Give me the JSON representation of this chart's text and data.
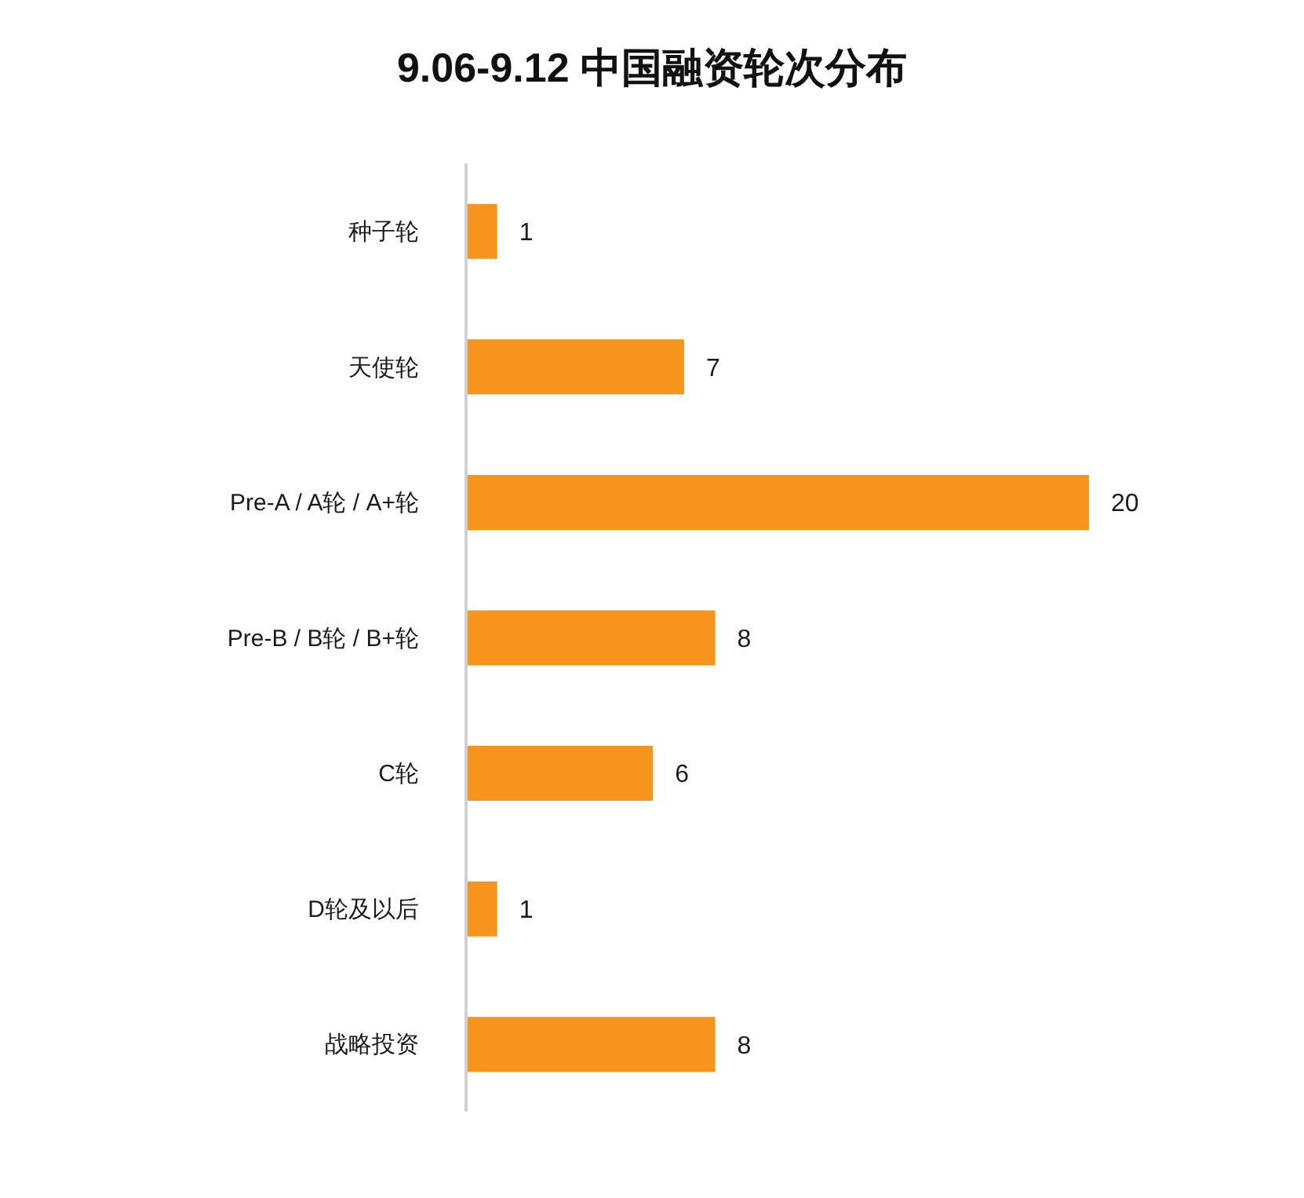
{
  "chart_data": {
    "type": "bar",
    "orientation": "horizontal",
    "title": "9.06-9.12 中国融资轮次分布",
    "categories": [
      "种子轮",
      "天使轮",
      "Pre-A / A轮 / A+轮",
      "Pre-B / B轮 / B+轮",
      "C轮",
      "D轮及以后",
      "战略投资"
    ],
    "values": [
      1,
      7,
      20,
      8,
      6,
      1,
      8
    ],
    "color": "#f7941d",
    "data_labels": true,
    "tick_labels": "y"
  }
}
